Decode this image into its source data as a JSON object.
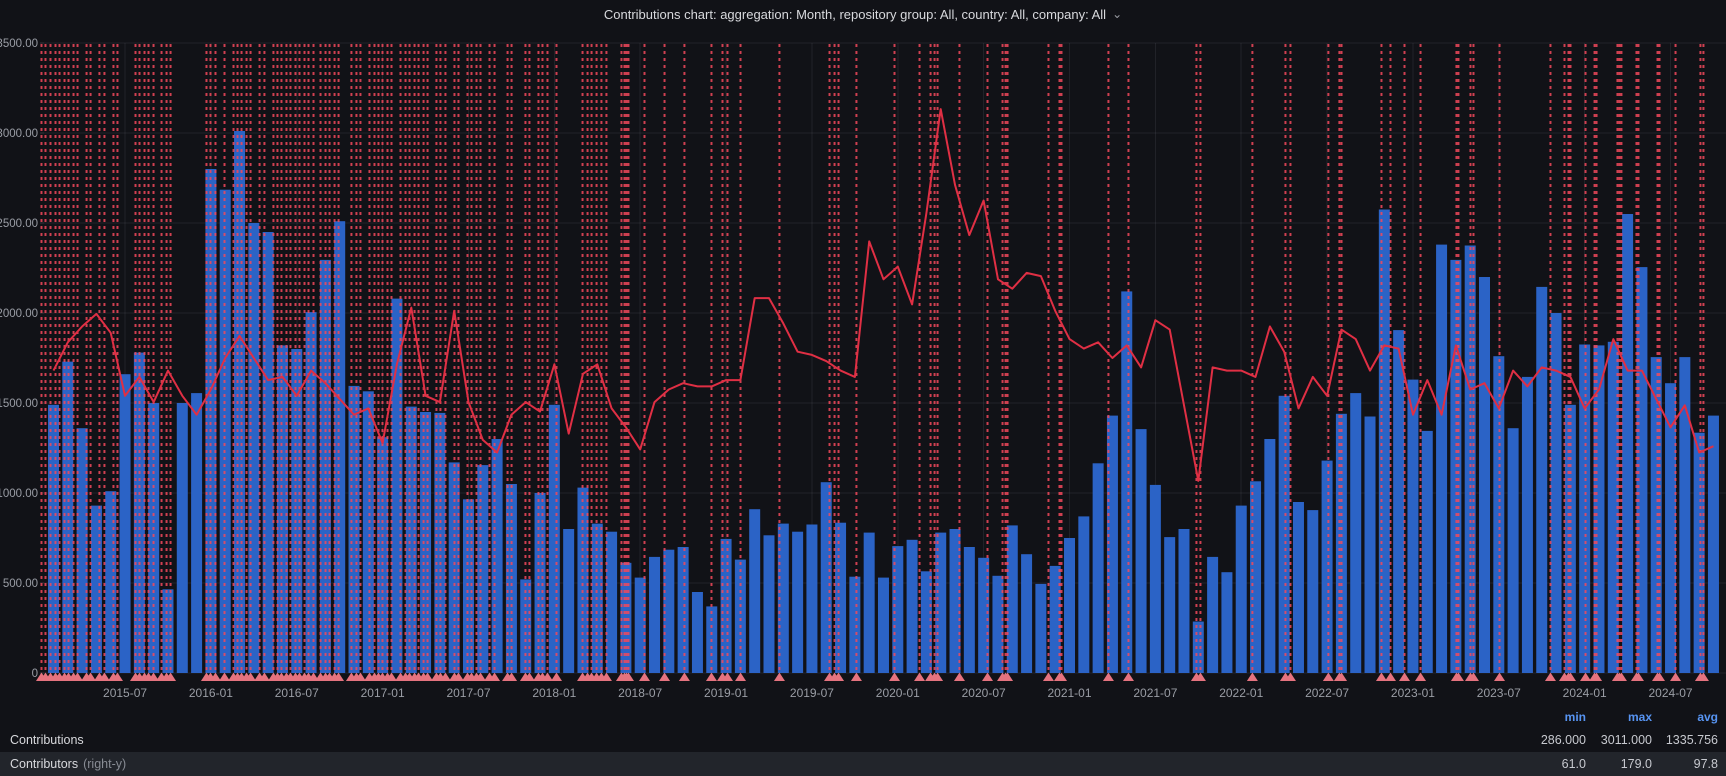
{
  "title": {
    "text": "Contributions chart: aggregation: Month, repository group: All, country: All, company: All",
    "chevron": "⌄"
  },
  "colors": {
    "bar": "#2b63c6",
    "line": "#e02f44",
    "annotation": "#f2495c",
    "annotation_marker": "#e5737f",
    "header_accent": "#5794f2",
    "background": "#111217"
  },
  "chart_data": {
    "type": "bar",
    "title": "Contributions chart: aggregation: Month, repository group: All, country: All, company: All",
    "x_interval": "month",
    "x_start": "2015-02",
    "x_end": "2024-10",
    "x_tick_labels": [
      "2015-07",
      "2016-01",
      "2016-07",
      "2017-01",
      "2017-07",
      "2018-01",
      "2018-07",
      "2019-01",
      "2019-07",
      "2020-01",
      "2020-07",
      "2021-01",
      "2021-07",
      "2022-01",
      "2022-07",
      "2023-01",
      "2023-07",
      "2024-01",
      "2024-07"
    ],
    "left_axis": {
      "min": 0,
      "max": 3500,
      "tick_step": 500,
      "tick_labels": [
        "3500.00",
        "3000.00",
        "2500.00",
        "2000.00",
        "1500.00",
        "1000.00",
        "500.00",
        "0"
      ]
    },
    "right_axis": {
      "min": 0,
      "max": 200,
      "labels_shown": false
    },
    "grid": true,
    "legend_position": "bottom",
    "series": [
      {
        "name": "Contributions",
        "type": "bar",
        "axis": "left",
        "min": 286.0,
        "max": 3011.0,
        "avg": 1335.756,
        "values": [
          1490,
          1730,
          1360,
          930,
          1010,
          1660,
          1780,
          1500,
          465,
          1500,
          1555,
          2800,
          2685,
          3011,
          2500,
          2450,
          1820,
          1800,
          2005,
          2295,
          2510,
          1595,
          1565,
          1310,
          2080,
          1480,
          1450,
          1445,
          1170,
          965,
          1155,
          1300,
          1050,
          520,
          1000,
          1490,
          800,
          1030,
          830,
          785,
          612,
          530,
          645,
          685,
          700,
          450,
          370,
          745,
          630,
          910,
          765,
          830,
          785,
          825,
          1060,
          835,
          535,
          780,
          530,
          705,
          740,
          565,
          780,
          800,
          700,
          640,
          540,
          820,
          660,
          495,
          595,
          750,
          870,
          1165,
          1430,
          2120,
          1355,
          1045,
          755,
          800,
          286,
          645,
          560,
          930,
          1065,
          1300,
          1540,
          950,
          905,
          1180,
          1440,
          1555,
          1425,
          2575,
          1905,
          1630,
          1345,
          2380,
          2295,
          2375,
          2200,
          1760,
          1360,
          1645,
          2145,
          2000,
          1490,
          1825,
          1820,
          1840,
          2550,
          2255,
          1755,
          1610,
          1755,
          1335,
          1430
        ]
      },
      {
        "name": "Contributors",
        "type": "line",
        "axis": "right",
        "min": 61.0,
        "max": 179.0,
        "avg": 97.8,
        "values": [
          96,
          105,
          110,
          114,
          108,
          88,
          94,
          86,
          96,
          88,
          82,
          90,
          100,
          107,
          100,
          93,
          94,
          88,
          96,
          92,
          87,
          82,
          84,
          73,
          98,
          116,
          88,
          86,
          115,
          86,
          74,
          70,
          82,
          86,
          83,
          98,
          76,
          95,
          98,
          84,
          78,
          71,
          86,
          90,
          92,
          91,
          91,
          93,
          93,
          119,
          119,
          111,
          102,
          101,
          99,
          96,
          94,
          137,
          125,
          129,
          117,
          146,
          179,
          155,
          139,
          150,
          125,
          122,
          127,
          126,
          115,
          106,
          103,
          105,
          100,
          104,
          97,
          112,
          109,
          85,
          61,
          97,
          96,
          96,
          94,
          110,
          102,
          84,
          94,
          88,
          109,
          106,
          96,
          104,
          103,
          82,
          93,
          82,
          104,
          90,
          92,
          84,
          96,
          91,
          97,
          96,
          94,
          84,
          90,
          106,
          96,
          96,
          87,
          78,
          85,
          70,
          72
        ]
      }
    ],
    "annotations": {
      "style": "vertical-dashed-line-with-triangle-marker",
      "month_offsets": [
        -0.84,
        -0.56,
        -0.21,
        0.14,
        0.42,
        0.77,
        1.05,
        1.4,
        1.68,
        2.31,
        2.59,
        3.21,
        3.56,
        4.19,
        4.47,
        5.73,
        6.01,
        6.36,
        6.64,
        6.99,
        7.55,
        7.9,
        8.18,
        10.69,
        10.97,
        11.32,
        11.95,
        12.58,
        12.86,
        13.14,
        13.49,
        13.77,
        14.4,
        14.74,
        15.37,
        15.65,
        15.93,
        16.28,
        16.56,
        16.91,
        17.19,
        17.54,
        17.82,
        18.17,
        18.66,
        19.01,
        19.29,
        19.64,
        19.92,
        20.82,
        21.17,
        21.45,
        22.08,
        22.43,
        22.71,
        22.99,
        23.34,
        23.62,
        24.25,
        24.6,
        24.88,
        25.23,
        25.51,
        25.86,
        26.14,
        26.76,
        27.04,
        27.39,
        28.02,
        28.3,
        28.93,
        29.21,
        29.56,
        29.84,
        30.47,
        30.82,
        31.73,
        32.01,
        32.98,
        33.26,
        33.89,
        34.17,
        34.52,
        35.15,
        36.97,
        37.32,
        37.6,
        37.95,
        38.29,
        38.64,
        39.69,
        39.9,
        40.04,
        40.18,
        41.3,
        42.7,
        44.09,
        45.98,
        46.75,
        47.1,
        48.01,
        50.73,
        54.23,
        54.58,
        54.86,
        56.11,
        58.77,
        60.52,
        61.29,
        61.57,
        61.78,
        63.31,
        65.27,
        66.32,
        66.53,
        66.67,
        69.53,
        70.3,
        70.44,
        73.72,
        75.12,
        79.87,
        80.15,
        83.78,
        86.09,
        86.44,
        89.09,
        89.86,
        90.01,
        92.8,
        93.43,
        94.41,
        95.53,
        98.04,
        98.18,
        99.02,
        99.23,
        101.05,
        104.61,
        105.59,
        105.87,
        106.01,
        107.06,
        107.69,
        107.83,
        109.29,
        109.43,
        109.57,
        110.62,
        110.76,
        112.09,
        112.23,
        113.35,
        115.09,
        115.3
      ]
    }
  },
  "legend": {
    "columns": [
      "min",
      "max",
      "avg"
    ],
    "rows": [
      {
        "label": "Contributions",
        "suffix": "",
        "min": "286.000",
        "max": "3011.000",
        "avg": "1335.756"
      },
      {
        "label": "Contributors",
        "suffix": "(right-y)",
        "min": "61.0",
        "max": "179.0",
        "avg": "97.8"
      }
    ]
  }
}
